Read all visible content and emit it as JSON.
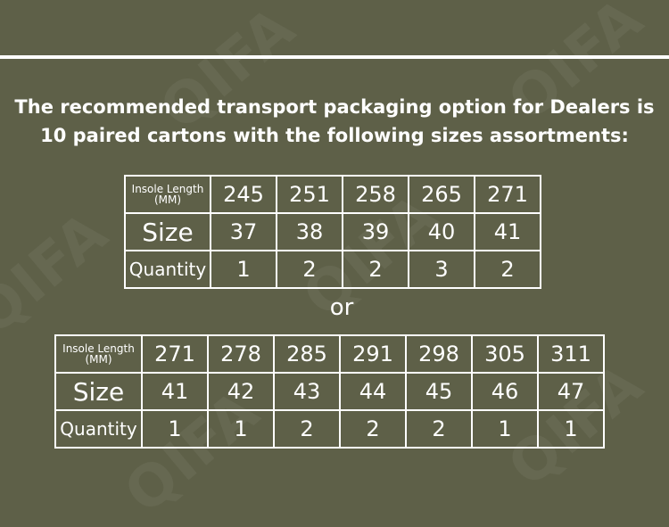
{
  "watermark": "QIFA",
  "headline": {
    "line1": "The recommended transport packaging option for Dealers is",
    "line2": "10 paired cartons with the following sizes assortments:"
  },
  "separator": "or",
  "tables": [
    {
      "row_labels": {
        "insole_line1": "Insole Length",
        "insole_line2": "(MM)",
        "size": "Size",
        "quantity": "Quantity"
      },
      "insole_length": [
        "245",
        "251",
        "258",
        "265",
        "271"
      ],
      "size": [
        "37",
        "38",
        "39",
        "40",
        "41"
      ],
      "quantity": [
        "1",
        "2",
        "2",
        "3",
        "2"
      ]
    },
    {
      "row_labels": {
        "insole_line1": "Insole Length",
        "insole_line2": "(MM)",
        "size": "Size",
        "quantity": "Quantity"
      },
      "insole_length": [
        "271",
        "278",
        "285",
        "291",
        "298",
        "305",
        "311"
      ],
      "size": [
        "41",
        "42",
        "43",
        "44",
        "45",
        "46",
        "47"
      ],
      "quantity": [
        "1",
        "1",
        "2",
        "2",
        "2",
        "1",
        "1"
      ]
    }
  ]
}
